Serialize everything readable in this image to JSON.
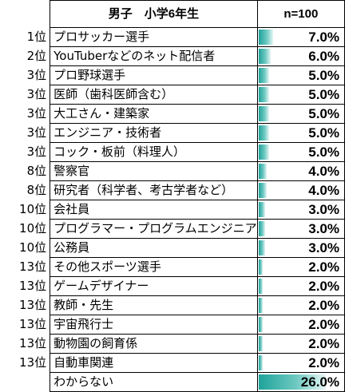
{
  "table": {
    "header": {
      "group_label": "男子　小学6年生",
      "n_label": "n=100"
    },
    "bar_color": "#1fa39a",
    "rows": [
      {
        "rank": "1位",
        "name": "プロサッカー選手",
        "value": "7.0%",
        "pct": 7.0
      },
      {
        "rank": "2位",
        "name": "YouTuberなどのネット配信者",
        "value": "6.0%",
        "pct": 6.0
      },
      {
        "rank": "3位",
        "name": "プロ野球選手",
        "value": "5.0%",
        "pct": 5.0
      },
      {
        "rank": "3位",
        "name": "医師（歯科医師含む）",
        "value": "5.0%",
        "pct": 5.0
      },
      {
        "rank": "3位",
        "name": "大工さん・建築家",
        "value": "5.0%",
        "pct": 5.0
      },
      {
        "rank": "3位",
        "name": "エンジニア・技術者",
        "value": "5.0%",
        "pct": 5.0
      },
      {
        "rank": "3位",
        "name": "コック・板前（料理人）",
        "value": "5.0%",
        "pct": 5.0
      },
      {
        "rank": "8位",
        "name": "警察官",
        "value": "4.0%",
        "pct": 4.0
      },
      {
        "rank": "8位",
        "name": "研究者（科学者、考古学者など）",
        "value": "4.0%",
        "pct": 4.0
      },
      {
        "rank": "10位",
        "name": "会社員",
        "value": "3.0%",
        "pct": 3.0
      },
      {
        "rank": "10位",
        "name": "プログラマー・プログラムエンジニア",
        "value": "3.0%",
        "pct": 3.0
      },
      {
        "rank": "10位",
        "name": "公務員",
        "value": "3.0%",
        "pct": 3.0
      },
      {
        "rank": "13位",
        "name": "その他スポーツ選手",
        "value": "2.0%",
        "pct": 2.0
      },
      {
        "rank": "13位",
        "name": "ゲームデザイナー",
        "value": "2.0%",
        "pct": 2.0
      },
      {
        "rank": "13位",
        "name": "教師・先生",
        "value": "2.0%",
        "pct": 2.0
      },
      {
        "rank": "13位",
        "name": "宇宙飛行士",
        "value": "2.0%",
        "pct": 2.0
      },
      {
        "rank": "13位",
        "name": "動物園の飼育係",
        "value": "2.0%",
        "pct": 2.0
      },
      {
        "rank": "13位",
        "name": "自動車関連",
        "value": "2.0%",
        "pct": 2.0
      },
      {
        "rank": "",
        "name": "わからない",
        "value": "26.0%",
        "pct": 26.0
      }
    ]
  }
}
